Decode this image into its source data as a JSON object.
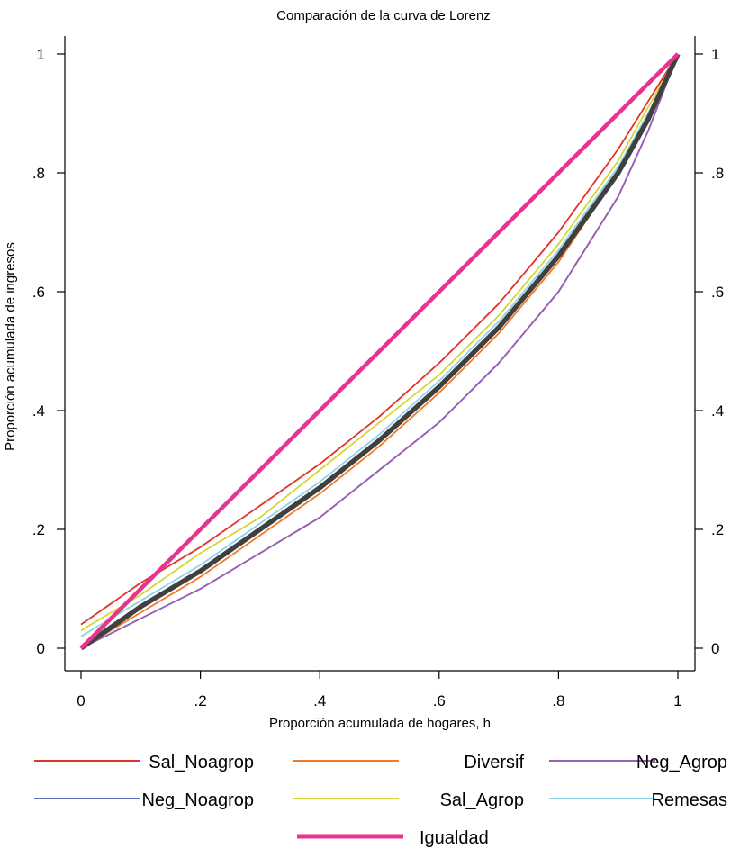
{
  "chart_data": {
    "type": "line",
    "title": "Comparación de la curva de Lorenz",
    "xlabel": "Proporción acumulada de hogares, h",
    "ylabel": "Proporción acumulada de ingresos",
    "xlim": [
      0,
      1
    ],
    "ylim": [
      0,
      1
    ],
    "x_ticks": [
      "0",
      ".2",
      ".4",
      ".6",
      ".8",
      "1"
    ],
    "y_ticks": [
      "0",
      ".2",
      ".4",
      ".6",
      ".8",
      "1"
    ],
    "right_axis_ticks": [
      "0",
      ".2",
      ".4",
      ".6",
      ".8",
      "1"
    ],
    "grid": false,
    "legend_position": "bottom",
    "x": [
      0,
      0.1,
      0.2,
      0.3,
      0.4,
      0.5,
      0.6,
      0.7,
      0.8,
      0.9,
      0.95,
      1.0
    ],
    "series": [
      {
        "name": "Sal_Noagrop",
        "color": "#e0332b",
        "values": [
          0.04,
          0.11,
          0.17,
          0.24,
          0.31,
          0.39,
          0.48,
          0.58,
          0.7,
          0.84,
          0.92,
          1.0
        ]
      },
      {
        "name": "Neg_Noagrop",
        "color": "#5b6fbf",
        "values": [
          0.0,
          0.05,
          0.1,
          0.16,
          0.22,
          0.3,
          0.38,
          0.48,
          0.6,
          0.76,
          0.87,
          1.0
        ]
      },
      {
        "name": "Diversif",
        "color": "#f07a2a",
        "values": [
          0.0,
          0.06,
          0.12,
          0.19,
          0.26,
          0.34,
          0.43,
          0.53,
          0.65,
          0.8,
          0.89,
          1.0
        ]
      },
      {
        "name": "Sal_Agrop",
        "color": "#d6d633",
        "values": [
          0.03,
          0.09,
          0.16,
          0.22,
          0.3,
          0.38,
          0.46,
          0.56,
          0.68,
          0.82,
          0.91,
          1.0
        ]
      },
      {
        "name": "Neg_Agrop",
        "color": "#9b5fb5",
        "values": [
          0.0,
          0.05,
          0.1,
          0.16,
          0.22,
          0.3,
          0.38,
          0.48,
          0.6,
          0.76,
          0.87,
          1.0
        ]
      },
      {
        "name": "Remesas",
        "color": "#8fd3e8",
        "values": [
          0.02,
          0.08,
          0.14,
          0.21,
          0.28,
          0.36,
          0.45,
          0.55,
          0.67,
          0.81,
          0.9,
          1.0
        ]
      },
      {
        "name": "",
        "color": "#404040",
        "values": [
          0.0,
          0.07,
          0.13,
          0.2,
          0.27,
          0.35,
          0.44,
          0.54,
          0.66,
          0.8,
          0.89,
          1.0
        ]
      },
      {
        "name": "Igualdad",
        "color": "#e8338f",
        "values": [
          0.0,
          0.1,
          0.2,
          0.3,
          0.4,
          0.5,
          0.6,
          0.7,
          0.8,
          0.9,
          0.95,
          1.0
        ]
      }
    ]
  }
}
